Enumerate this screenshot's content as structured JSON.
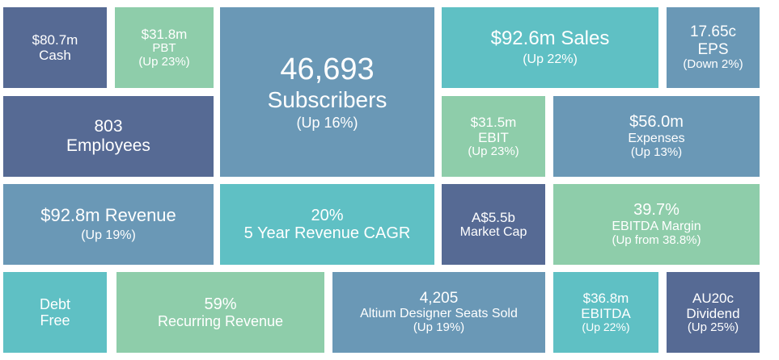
{
  "tiles": {
    "cash": {
      "value": "$80.7m",
      "label": "Cash"
    },
    "pbt": {
      "value": "$31.8m",
      "label": "PBT",
      "change": "(Up 23%)"
    },
    "subscribers": {
      "value": "46,693",
      "label": "Subscribers",
      "change": "(Up 16%)"
    },
    "sales": {
      "value": "$92.6m Sales",
      "change": "(Up 22%)"
    },
    "eps": {
      "value": "17.65c",
      "label": "EPS",
      "change": "(Down 2%)"
    },
    "employees": {
      "value": "803",
      "label": "Employees"
    },
    "ebit": {
      "value": "$31.5m",
      "label": "EBIT",
      "change": "(Up 23%)"
    },
    "expenses": {
      "value": "$56.0m",
      "label": "Expenses",
      "change": "(Up 13%)"
    },
    "revenue": {
      "value": "$92.8m Revenue",
      "change": "(Up 19%)"
    },
    "cagr": {
      "value": "20%",
      "label": "5 Year Revenue CAGR"
    },
    "market_cap": {
      "value": "A$5.5b",
      "label": "Market Cap"
    },
    "ebitda_margin": {
      "value": "39.7%",
      "label": "EBITDA Margin",
      "change": "(Up from 38.8%)"
    },
    "debt": {
      "line1": "Debt",
      "line2": "Free"
    },
    "recurring": {
      "value": "59%",
      "label": "Recurring Revenue"
    },
    "seats": {
      "value": "4,205",
      "label": "Altium Designer Seats Sold",
      "change": "(Up 19%)"
    },
    "ebitda": {
      "value": "$36.8m",
      "label": "EBITDA",
      "change": "(Up 22%)"
    },
    "dividend": {
      "value": "AU20c",
      "label": "Dividend",
      "change": "(Up 25%)"
    }
  },
  "colors": {
    "navy": "#566a94",
    "mint": "#8ecdaa",
    "steel": "#6a98b6",
    "teal": "#5fc0c4"
  }
}
